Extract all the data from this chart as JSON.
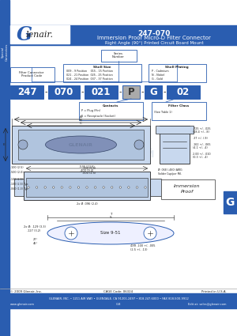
{
  "title_line1": "247-070",
  "title_line2": "Immersion Proof Micro-D Filter Connector",
  "title_line3": "Right Angle (90°) Printed Circuit Board Mount",
  "header_bg": "#2a5db0",
  "header_text_color": "#ffffff",
  "logo_G": "G",
  "sidebar_text": "Special\nConnectors",
  "sidebar_bg": "#2a5db0",
  "part_numbers": [
    "247",
    "070",
    "021",
    "P",
    "G",
    "02"
  ],
  "footer_copy": "© 2009 Glenair, Inc.",
  "footer_cage": "CAGE Code: 06324",
  "footer_printed": "Printed in U.S.A.",
  "footer_address": "GLENAIR, INC. • 1211 AIR WAY • GLENDALE, CA 91201-2497 • 818-247-6000 • FAX 818-500-9912",
  "footer_web": "www.glenair.com",
  "footer_page": "G-8",
  "footer_edit": "Edit at: sales@glenair.com",
  "bg_color": "#ffffff",
  "blue": "#2a5db0",
  "dark": "#222222",
  "mid": "#555555",
  "G_label": "G",
  "diagram_fill": "#c8d8ee",
  "diagram_fill2": "#b0c4de"
}
